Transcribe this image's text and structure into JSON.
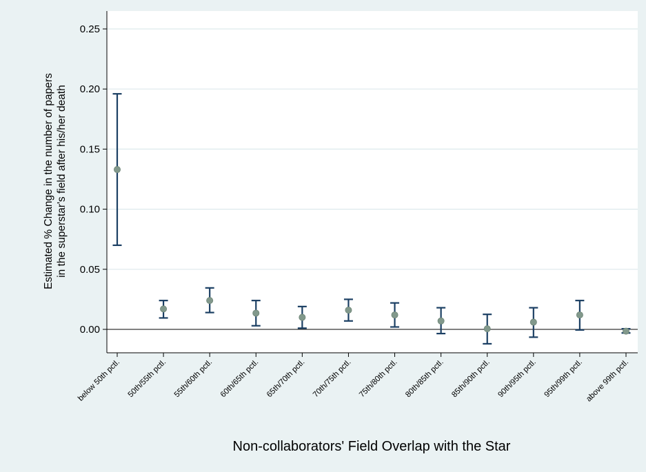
{
  "chart_data": {
    "type": "scatter",
    "title": "",
    "xlabel": "Non-collaborators' Field Overlap with the Star",
    "ylabel_lines": [
      "Estimated % Change in the number of papers",
      "in the superstar's field after his/her death"
    ],
    "ylim": [
      -0.02,
      0.26
    ],
    "yticks": [
      0.0,
      0.05,
      0.1,
      0.15,
      0.2,
      0.25
    ],
    "ytick_labels": [
      "0.00",
      "0.05",
      "0.10",
      "0.15",
      "0.20",
      "0.25"
    ],
    "categories": [
      "below 50th pctl.",
      "50th/55th pctl.",
      "55th/60th pctl.",
      "60th/65th pctl.",
      "65th/70th pctl.",
      "70th/75th pctl.",
      "75th/80th pctl.",
      "80th/85th pctl.",
      "85th/90th pctl.",
      "90th/95th pctl.",
      "95th/99th pctl.",
      "above 99th pctl."
    ],
    "estimates": [
      0.133,
      0.017,
      0.024,
      0.0135,
      0.01,
      0.016,
      0.012,
      0.007,
      0.0005,
      0.006,
      0.012,
      -0.0015
    ],
    "ci_low": [
      0.07,
      0.0095,
      0.014,
      0.003,
      0.001,
      0.007,
      0.002,
      -0.0035,
      -0.012,
      -0.0065,
      -0.0005,
      -0.003
    ],
    "ci_high": [
      0.196,
      0.024,
      0.0345,
      0.024,
      0.019,
      0.025,
      0.022,
      0.018,
      0.0125,
      0.018,
      0.024,
      0.0005
    ],
    "reference_line": 0.0,
    "grid": true,
    "colors": {
      "outer_background": "#eaf2f3",
      "plot_background": "#ffffff",
      "grid": "#dde9ec",
      "error_bar": "#1b3f63",
      "marker": "#82998c",
      "marker_edge": "#6e8577",
      "zero_line": "#000000",
      "axis": "#000000",
      "text": "#000000"
    }
  }
}
